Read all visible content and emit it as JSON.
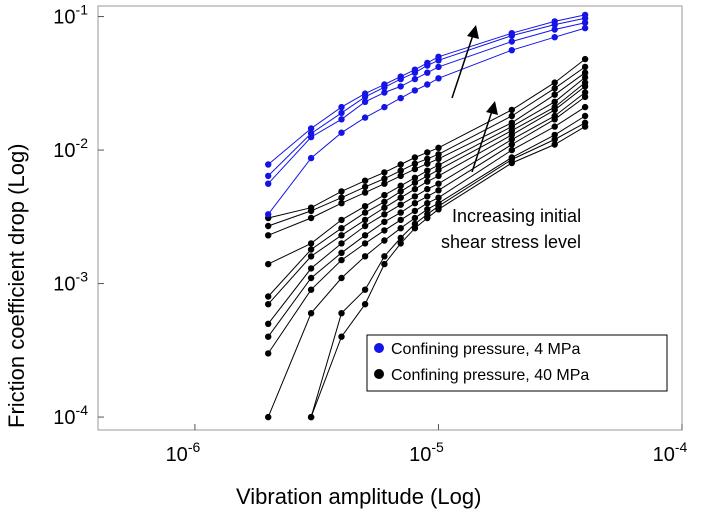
{
  "chart_data": {
    "type": "line",
    "xlabel": "Vibration amplitude (Log)",
    "ylabel": "Friction coefficient drop (Log)",
    "xscale": "log",
    "yscale": "log",
    "xlim": [
      4e-07,
      0.0001
    ],
    "ylim": [
      8e-05,
      0.12
    ],
    "xticks": [
      {
        "value": 1e-06,
        "mant": "10",
        "exp": "-6"
      },
      {
        "value": 1e-05,
        "mant": "10",
        "exp": "-5"
      },
      {
        "value": 0.0001,
        "mant": "10",
        "exp": "-4"
      }
    ],
    "yticks": [
      {
        "value": 0.0001,
        "mant": "10",
        "exp": "-4"
      },
      {
        "value": 0.001,
        "mant": "10",
        "exp": "-3"
      },
      {
        "value": 0.01,
        "mant": "10",
        "exp": "-2"
      },
      {
        "value": 0.1,
        "mant": "10",
        "exp": "-1"
      }
    ],
    "grid": false,
    "legend_position": "bottom-right",
    "legend": [
      {
        "label": "Confining pressure, 4 MPa",
        "color": "#1414e6"
      },
      {
        "label": "Confining pressure, 40 MPa",
        "color": "#000000"
      }
    ],
    "annotation": {
      "lines": [
        "Increasing initial",
        "shear stress level"
      ]
    },
    "series": [
      {
        "group": 0,
        "color": "#1414e6",
        "x": [
          2e-06,
          3e-06,
          4e-06,
          5e-06,
          6e-06,
          7e-06,
          8e-06,
          9e-06,
          1e-05,
          2e-05,
          3e-05,
          4e-05
        ],
        "y": [
          0.0078,
          0.0145,
          0.021,
          0.0265,
          0.031,
          0.0355,
          0.04,
          0.045,
          0.05,
          0.075,
          0.092,
          0.103
        ]
      },
      {
        "group": 0,
        "color": "#1414e6",
        "x": [
          2e-06,
          3e-06,
          4e-06,
          5e-06,
          6e-06,
          7e-06,
          8e-06,
          9e-06,
          1e-05,
          2e-05,
          3e-05,
          4e-05
        ],
        "y": [
          0.0064,
          0.0133,
          0.019,
          0.025,
          0.0295,
          0.034,
          0.038,
          0.043,
          0.047,
          0.072,
          0.087,
          0.097
        ]
      },
      {
        "group": 0,
        "color": "#1414e6",
        "x": [
          2e-06,
          3e-06,
          4e-06,
          5e-06,
          6e-06,
          7e-06,
          8e-06,
          9e-06,
          1e-05,
          2e-05,
          3e-05,
          4e-05
        ],
        "y": [
          0.0056,
          0.0125,
          0.017,
          0.023,
          0.027,
          0.03,
          0.034,
          0.038,
          0.042,
          0.065,
          0.08,
          0.09
        ]
      },
      {
        "group": 0,
        "color": "#1414e6",
        "x": [
          2e-06,
          3e-06,
          4e-06,
          5e-06,
          6e-06,
          7e-06,
          8e-06,
          9e-06,
          1e-05,
          2e-05,
          3e-05,
          4e-05
        ],
        "y": [
          0.0033,
          0.0087,
          0.0135,
          0.0175,
          0.021,
          0.0245,
          0.028,
          0.031,
          0.0345,
          0.056,
          0.07,
          0.082
        ]
      },
      {
        "group": 1,
        "color": "#000000",
        "x": [
          2e-06,
          3e-06,
          4e-06,
          5e-06,
          6e-06,
          7e-06,
          8e-06,
          9e-06,
          1e-05,
          2e-05,
          3e-05,
          4e-05
        ],
        "y": [
          0.0031,
          0.0037,
          0.0049,
          0.0059,
          0.0068,
          0.0078,
          0.0088,
          0.0096,
          0.0104,
          0.02,
          0.032,
          0.048
        ]
      },
      {
        "group": 1,
        "color": "#000000",
        "x": [
          2e-06,
          3e-06,
          4e-06,
          5e-06,
          6e-06,
          7e-06,
          8e-06,
          9e-06,
          1e-05,
          2e-05,
          3e-05,
          4e-05
        ],
        "y": [
          0.0027,
          0.0035,
          0.0044,
          0.0053,
          0.0061,
          0.007,
          0.0079,
          0.0086,
          0.0093,
          0.018,
          0.029,
          0.042
        ]
      },
      {
        "group": 1,
        "color": "#000000",
        "x": [
          2e-06,
          3e-06,
          4e-06,
          5e-06,
          6e-06,
          7e-06,
          8e-06,
          9e-06,
          1e-05,
          2e-05,
          3e-05,
          4e-05
        ],
        "y": [
          0.0023,
          0.0031,
          0.004,
          0.0048,
          0.0056,
          0.0064,
          0.0072,
          0.0079,
          0.0086,
          0.016,
          0.026,
          0.038
        ]
      },
      {
        "group": 1,
        "color": "#000000",
        "x": [
          2e-06,
          3e-06,
          4e-06,
          5e-06,
          6e-06,
          7e-06,
          8e-06,
          9e-06,
          1e-05,
          2e-05,
          3e-05,
          4e-05
        ],
        "y": [
          0.0014,
          0.002,
          0.003,
          0.0038,
          0.0046,
          0.0054,
          0.0062,
          0.007,
          0.0077,
          0.015,
          0.023,
          0.035
        ]
      },
      {
        "group": 1,
        "color": "#000000",
        "x": [
          2e-06,
          3e-06,
          4e-06,
          5e-06,
          6e-06,
          7e-06,
          8e-06,
          9e-06,
          1e-05,
          2e-05,
          3e-05,
          4e-05
        ],
        "y": [
          0.0008,
          0.0018,
          0.0026,
          0.0034,
          0.0041,
          0.0049,
          0.0057,
          0.0064,
          0.0071,
          0.014,
          0.021,
          0.032
        ]
      },
      {
        "group": 1,
        "color": "#000000",
        "x": [
          2e-06,
          3e-06,
          4e-06,
          5e-06,
          6e-06,
          7e-06,
          8e-06,
          9e-06,
          1e-05,
          2e-05,
          3e-05,
          4e-05
        ],
        "y": [
          0.0007,
          0.0016,
          0.0023,
          0.003,
          0.0037,
          0.0044,
          0.0051,
          0.0058,
          0.0064,
          0.013,
          0.02,
          0.03
        ]
      },
      {
        "group": 1,
        "color": "#000000",
        "x": [
          2e-06,
          3e-06,
          4e-06,
          5e-06,
          6e-06,
          7e-06,
          8e-06,
          9e-06,
          1e-05,
          2e-05,
          3e-05,
          4e-05
        ],
        "y": [
          0.0005,
          0.0013,
          0.002,
          0.0027,
          0.0033,
          0.0039,
          0.0045,
          0.0051,
          0.0056,
          0.012,
          0.018,
          0.027
        ]
      },
      {
        "group": 1,
        "color": "#000000",
        "x": [
          2e-06,
          3e-06,
          4e-06,
          5e-06,
          6e-06,
          7e-06,
          8e-06,
          9e-06,
          1e-05,
          2e-05,
          3e-05,
          4e-05
        ],
        "y": [
          0.0004,
          0.0011,
          0.0017,
          0.0023,
          0.0029,
          0.0034,
          0.004,
          0.0045,
          0.005,
          0.011,
          0.017,
          0.025
        ]
      },
      {
        "group": 1,
        "color": "#000000",
        "x": [
          2e-06,
          3e-06,
          4e-06,
          5e-06,
          6e-06,
          7e-06,
          8e-06,
          9e-06,
          1e-05,
          2e-05,
          3e-05,
          4e-05
        ],
        "y": [
          0.0003,
          0.0009,
          0.0015,
          0.002,
          0.0025,
          0.003,
          0.0035,
          0.004,
          0.0044,
          0.01,
          0.015,
          0.021
        ]
      },
      {
        "group": 1,
        "color": "#000000",
        "x": [
          2e-06,
          3e-06,
          4e-06,
          5e-06,
          6e-06,
          7e-06,
          8e-06,
          9e-06,
          1e-05,
          2e-05,
          3e-05,
          4e-05
        ],
        "y": [
          0.0001,
          0.0006,
          0.0011,
          0.0016,
          0.0021,
          0.0026,
          0.0031,
          0.0036,
          0.004,
          0.0088,
          0.013,
          0.018
        ]
      },
      {
        "group": 1,
        "color": "#000000",
        "x": [
          3e-06,
          4e-06,
          5e-06,
          6e-06,
          7e-06,
          8e-06,
          9e-06,
          1e-05,
          2e-05,
          3e-05,
          4e-05
        ],
        "y": [
          0.0001,
          0.0004,
          0.0007,
          0.0014,
          0.002,
          0.0026,
          0.0031,
          0.0036,
          0.008,
          0.011,
          0.015
        ]
      },
      {
        "group": 1,
        "color": "#000000",
        "x": [
          3e-06,
          4e-06,
          5e-06,
          6e-06,
          7e-06,
          8e-06,
          9e-06,
          1e-05,
          2e-05,
          3e-05,
          4e-05
        ],
        "y": [
          0.0001,
          0.0006,
          0.0009,
          0.0016,
          0.0022,
          0.0028,
          0.0033,
          0.0038,
          0.0085,
          0.012,
          0.016
        ]
      }
    ]
  }
}
